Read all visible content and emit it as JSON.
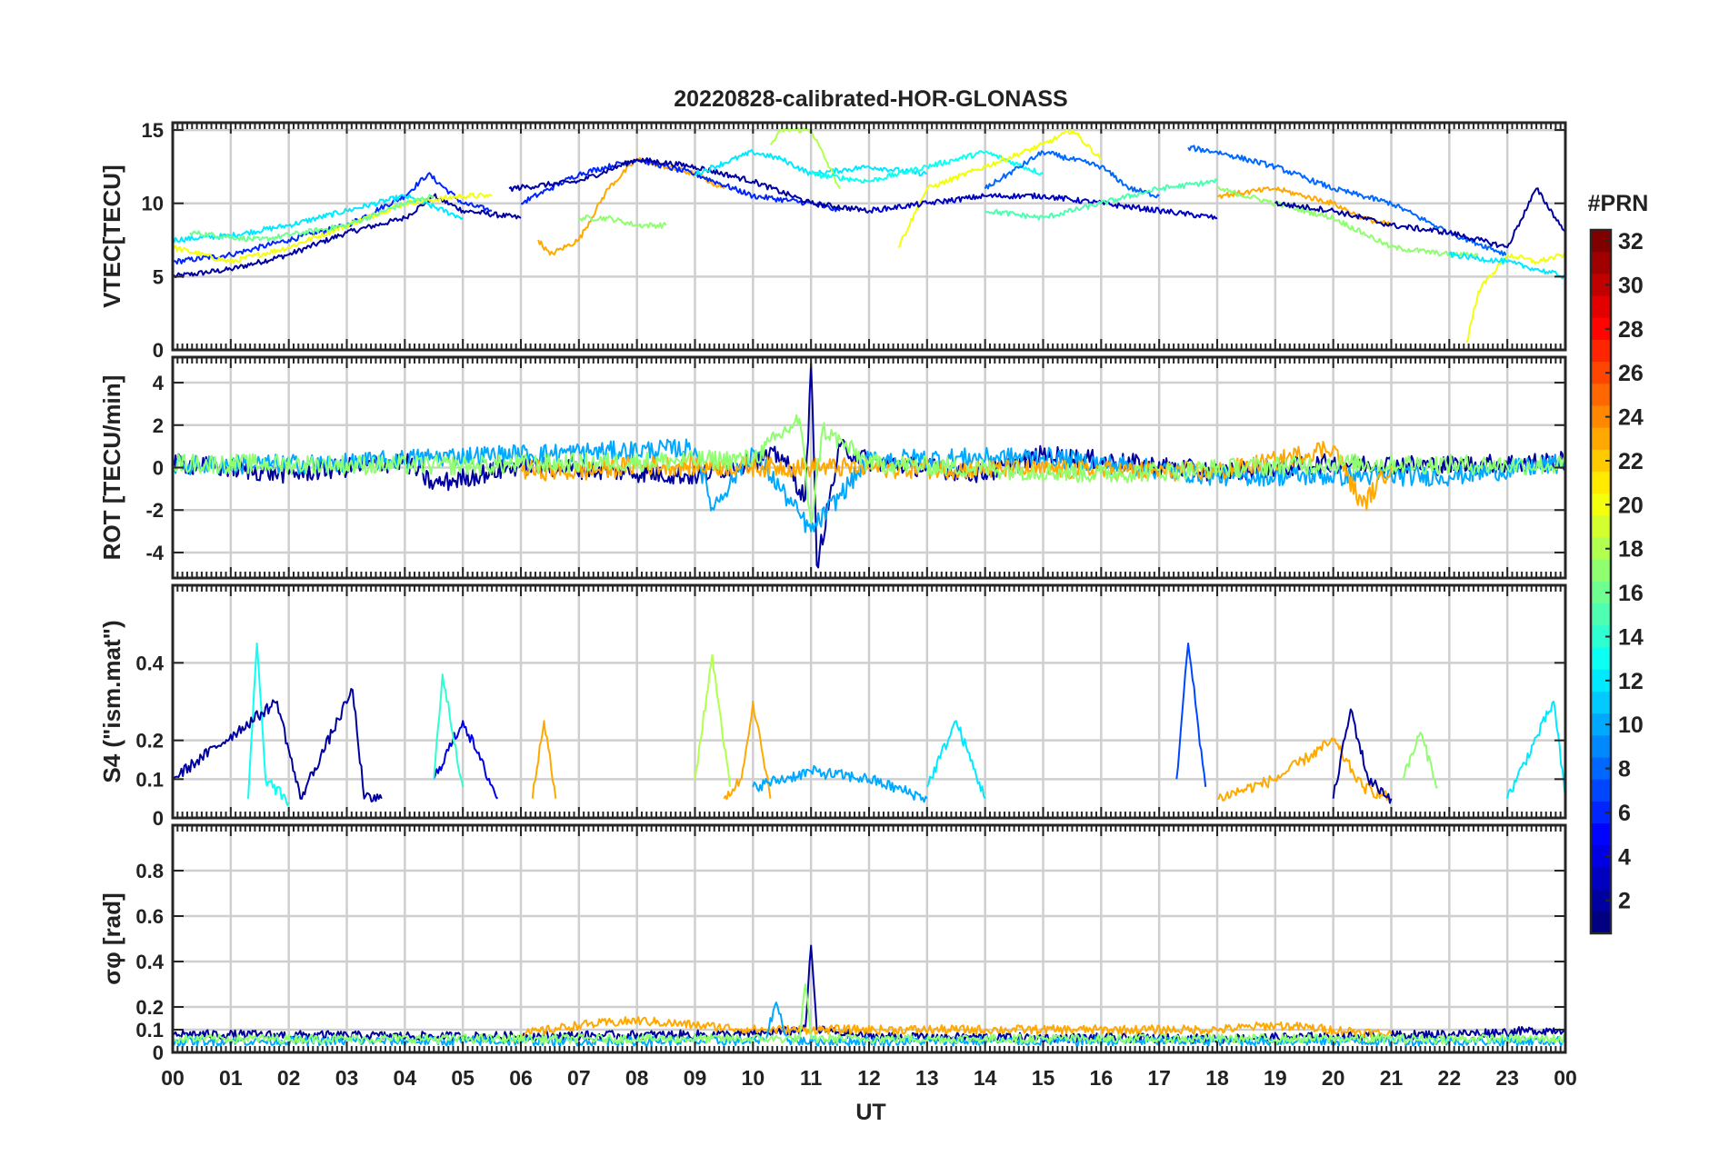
{
  "title": "20220828-calibrated-HOR-GLONASS",
  "xlabel": "UT",
  "x_ticks": [
    "00",
    "01",
    "02",
    "03",
    "04",
    "05",
    "06",
    "07",
    "08",
    "09",
    "10",
    "11",
    "12",
    "13",
    "14",
    "15",
    "16",
    "17",
    "18",
    "19",
    "20",
    "21",
    "22",
    "23",
    "00"
  ],
  "colorbar": {
    "label": "#PRN",
    "range": [
      1,
      32
    ],
    "ticks": [
      2,
      4,
      6,
      8,
      10,
      12,
      14,
      16,
      18,
      20,
      22,
      24,
      26,
      28,
      30,
      32
    ],
    "colormap": "jet"
  },
  "chart_data": [
    {
      "type": "line",
      "id": "vtec",
      "ylabel": "VTEC[TECU]",
      "ylim": [
        0,
        15.5
      ],
      "yticks": [
        0,
        5,
        10,
        15
      ],
      "xlim": [
        0,
        24
      ],
      "grid": true,
      "series": [
        {
          "prn": 2,
          "x": [
            0,
            1,
            2,
            3,
            4,
            4.5,
            5,
            6
          ],
          "y": [
            5.0,
            5.5,
            6.5,
            8.0,
            9.0,
            10.5,
            9.5,
            9.0
          ]
        },
        {
          "prn": 6,
          "x": [
            0,
            1,
            2,
            3,
            4,
            4.4,
            5,
            5.5
          ],
          "y": [
            6.0,
            6.5,
            7.5,
            8.5,
            10.5,
            12.0,
            10.0,
            9.5
          ]
        },
        {
          "prn": 12,
          "x": [
            0,
            1,
            2,
            3,
            4,
            5
          ],
          "y": [
            7.5,
            7.8,
            8.5,
            9.5,
            10.5,
            9.0
          ]
        },
        {
          "prn": 20,
          "x": [
            0,
            1,
            2,
            3,
            4,
            5,
            5.5
          ],
          "y": [
            7.0,
            6.0,
            7.0,
            8.5,
            10.0,
            10.5,
            10.5
          ]
        },
        {
          "prn": 16,
          "x": [
            0.3,
            1.5,
            3,
            4,
            4.5
          ],
          "y": [
            8.0,
            7.5,
            8.5,
            10.0,
            10.5
          ]
        },
        {
          "prn": 23,
          "x": [
            6.3,
            6.5,
            7,
            7.5,
            8,
            9,
            9.5
          ],
          "y": [
            7.5,
            6.5,
            7.5,
            11.0,
            13.0,
            12.0,
            11.0
          ]
        },
        {
          "prn": 17,
          "x": [
            7,
            7.5,
            8,
            8.5
          ],
          "y": [
            9.0,
            9.0,
            8.5,
            8.5
          ]
        },
        {
          "prn": 6,
          "x": [
            6,
            7,
            8,
            9,
            10,
            11,
            11.5
          ],
          "y": [
            10.0,
            12.0,
            13.0,
            12.0,
            10.5,
            10.0,
            9.5
          ]
        },
        {
          "prn": 2,
          "x": [
            5.8,
            7,
            8,
            9,
            10,
            11,
            12
          ],
          "y": [
            11.0,
            11.5,
            13.0,
            12.5,
            11.5,
            10.0,
            9.5
          ]
        },
        {
          "prn": 12,
          "x": [
            9,
            10,
            10.5,
            11,
            12,
            13
          ],
          "y": [
            12.0,
            13.5,
            13.0,
            12.0,
            12.5,
            12.0
          ]
        },
        {
          "prn": 18,
          "x": [
            10.3,
            10.5,
            11,
            11.5
          ],
          "y": [
            14.0,
            15.0,
            15.0,
            11.0
          ]
        },
        {
          "prn": 13,
          "x": [
            11,
            12,
            13,
            14,
            15
          ],
          "y": [
            12.0,
            11.5,
            12.5,
            13.5,
            12.0
          ]
        },
        {
          "prn": 20,
          "x": [
            12.5,
            13,
            14,
            15,
            15.5,
            16
          ],
          "y": [
            7.0,
            11.0,
            12.5,
            14.0,
            15.0,
            13.0
          ]
        },
        {
          "prn": 3,
          "x": [
            12,
            13,
            14,
            15,
            16,
            17,
            18
          ],
          "y": [
            9.5,
            10.0,
            10.5,
            10.5,
            10.0,
            9.5,
            9.0
          ]
        },
        {
          "prn": 8,
          "x": [
            14,
            15,
            16,
            16.5,
            17
          ],
          "y": [
            11.0,
            13.5,
            12.5,
            11.0,
            10.5
          ]
        },
        {
          "prn": 15,
          "x": [
            14,
            15,
            16,
            17,
            18
          ],
          "y": [
            9.5,
            9.0,
            10.0,
            11.0,
            11.5
          ]
        },
        {
          "prn": 8,
          "x": [
            17.5,
            18,
            19,
            20,
            21,
            22,
            23
          ],
          "y": [
            13.8,
            13.5,
            12.5,
            11.0,
            10.0,
            8.0,
            6.5
          ]
        },
        {
          "prn": 23,
          "x": [
            18,
            19,
            19.5,
            20,
            20.5,
            21
          ],
          "y": [
            10.5,
            11.0,
            10.5,
            10.0,
            9.0,
            8.5
          ]
        },
        {
          "prn": 17,
          "x": [
            18,
            19,
            20,
            21,
            22,
            22.5
          ],
          "y": [
            11.0,
            10.0,
            9.0,
            7.0,
            6.5,
            6.5
          ]
        },
        {
          "prn": 2,
          "x": [
            19,
            20,
            21,
            22,
            23,
            23.5,
            24
          ],
          "y": [
            10.0,
            9.5,
            8.5,
            8.0,
            7.0,
            11.0,
            8.0
          ]
        },
        {
          "prn": 20,
          "x": [
            22.3,
            22.5,
            23,
            23.5,
            24
          ],
          "y": [
            0.5,
            4.0,
            6.5,
            6.0,
            6.5
          ]
        },
        {
          "prn": 12,
          "x": [
            22,
            23,
            23.5,
            24
          ],
          "y": [
            6.5,
            6.0,
            5.5,
            5.0
          ]
        }
      ]
    },
    {
      "type": "line",
      "id": "rot",
      "ylabel": "ROT [TECU/min]",
      "ylim": [
        -5.2,
        5.2
      ],
      "yticks": [
        -4,
        -2,
        0,
        2,
        4
      ],
      "xlim": [
        0,
        24
      ],
      "grid": true,
      "series": [
        {
          "prn": 2,
          "x": [
            0,
            2,
            4,
            4.5,
            6,
            9,
            10,
            10.5,
            10.9,
            11,
            11.1,
            11.5,
            12,
            14,
            15,
            18,
            20,
            22,
            24
          ],
          "y": [
            0.2,
            -0.3,
            0.3,
            -0.8,
            0.1,
            -0.4,
            0.3,
            0.6,
            -1.5,
            4.9,
            -4.6,
            1.0,
            0.3,
            -0.3,
            0.6,
            -0.2,
            0.2,
            0.1,
            0.3
          ]
        },
        {
          "prn": 10,
          "x": [
            0,
            3,
            4.5,
            9,
            9.3,
            10,
            11,
            12,
            15,
            18,
            22,
            24
          ],
          "y": [
            0.1,
            0.2,
            0.5,
            0.9,
            -1.9,
            0.8,
            -3.0,
            0.4,
            0.5,
            -0.4,
            -0.4,
            0.2
          ]
        },
        {
          "prn": 23,
          "x": [
            6,
            7,
            8,
            18,
            19,
            20,
            20.5,
            21
          ],
          "y": [
            -0.1,
            -0.2,
            0.1,
            -0.2,
            0.3,
            1.0,
            -1.8,
            0.1
          ]
        },
        {
          "prn": 17,
          "x": [
            0,
            5,
            10,
            10.8,
            11,
            11.2,
            12,
            16,
            20,
            24
          ],
          "y": [
            0.2,
            0.1,
            0.4,
            2.3,
            -2.6,
            1.8,
            0.2,
            -0.3,
            0.2,
            0.1
          ]
        }
      ]
    },
    {
      "type": "line",
      "id": "s4",
      "ylabel": "S4 (\"ism.mat\")",
      "ylim": [
        0,
        0.6
      ],
      "yticks": [
        0,
        0.1,
        0.2,
        0.4
      ],
      "xlim": [
        0,
        24
      ],
      "grid": true,
      "series": [
        {
          "prn": 13,
          "x": [
            1.3,
            1.45,
            1.6,
            2.0
          ],
          "y": [
            0.05,
            0.45,
            0.1,
            0.04
          ]
        },
        {
          "prn": 2,
          "x": [
            0,
            1.8,
            2.2,
            3.1,
            3.3,
            3.6
          ],
          "y": [
            0.1,
            0.3,
            0.05,
            0.33,
            0.05,
            0.05
          ]
        },
        {
          "prn": 4,
          "x": [
            4.5,
            5,
            5.3,
            5.6
          ],
          "y": [
            0.1,
            0.25,
            0.15,
            0.05
          ]
        },
        {
          "prn": 14,
          "x": [
            4.5,
            4.65,
            5
          ],
          "y": [
            0.1,
            0.37,
            0.08
          ]
        },
        {
          "prn": 23,
          "x": [
            6.2,
            6.4,
            6.6
          ],
          "y": [
            0.05,
            0.25,
            0.05
          ]
        },
        {
          "prn": 18,
          "x": [
            9,
            9.3,
            9.6
          ],
          "y": [
            0.1,
            0.42,
            0.08
          ]
        },
        {
          "prn": 23,
          "x": [
            9.5,
            9.8,
            10,
            10.3
          ],
          "y": [
            0.05,
            0.1,
            0.3,
            0.05
          ]
        },
        {
          "prn": 10,
          "x": [
            10,
            11,
            12,
            13
          ],
          "y": [
            0.08,
            0.12,
            0.1,
            0.05
          ]
        },
        {
          "prn": 12,
          "x": [
            13,
            13.5,
            14
          ],
          "y": [
            0.08,
            0.25,
            0.05
          ]
        },
        {
          "prn": 7,
          "x": [
            17.3,
            17.5,
            17.8
          ],
          "y": [
            0.1,
            0.45,
            0.08
          ]
        },
        {
          "prn": 23,
          "x": [
            18,
            19,
            20,
            20.5,
            21
          ],
          "y": [
            0.05,
            0.1,
            0.2,
            0.08,
            0.05
          ]
        },
        {
          "prn": 2,
          "x": [
            20,
            20.3,
            20.6,
            21
          ],
          "y": [
            0.05,
            0.28,
            0.1,
            0.05
          ]
        },
        {
          "prn": 17,
          "x": [
            21.2,
            21.5,
            21.8
          ],
          "y": [
            0.1,
            0.22,
            0.08
          ]
        },
        {
          "prn": 12,
          "x": [
            23,
            23.8,
            24
          ],
          "y": [
            0.05,
            0.3,
            0.05
          ]
        }
      ]
    },
    {
      "type": "line",
      "id": "sigma_phi",
      "ylabel": "σφ [rad]",
      "ylim": [
        0,
        1.0
      ],
      "yticks": [
        0,
        0.1,
        0.2,
        0.4,
        0.6,
        0.8
      ],
      "xlim": [
        0,
        24
      ],
      "grid": true,
      "series": [
        {
          "prn": 2,
          "x": [
            0,
            5,
            10,
            10.9,
            11,
            11.1,
            12,
            18,
            22,
            24
          ],
          "y": [
            0.08,
            0.07,
            0.08,
            0.1,
            0.47,
            0.1,
            0.07,
            0.06,
            0.08,
            0.1
          ]
        },
        {
          "prn": 23,
          "x": [
            6,
            7,
            8,
            9,
            10,
            18,
            19,
            20,
            21
          ],
          "y": [
            0.08,
            0.12,
            0.14,
            0.12,
            0.1,
            0.1,
            0.12,
            0.1,
            0.08
          ]
        },
        {
          "prn": 10,
          "x": [
            0,
            10.2,
            10.4,
            10.6,
            24
          ],
          "y": [
            0.05,
            0.05,
            0.22,
            0.05,
            0.05
          ]
        },
        {
          "prn": 17,
          "x": [
            0,
            10.8,
            10.9,
            11,
            24
          ],
          "y": [
            0.06,
            0.06,
            0.3,
            0.06,
            0.06
          ]
        }
      ]
    }
  ]
}
